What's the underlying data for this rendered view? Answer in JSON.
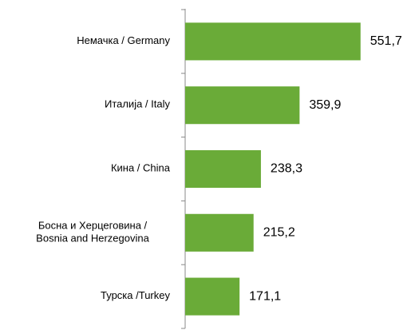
{
  "chart_data": {
    "type": "hbar",
    "categories": [
      "Немачка / Germany",
      "Италија / Italy",
      "Кина / China",
      "Босна и Херцеговина /\nBosnia and Herzegovina",
      "Турска /Turkey"
    ],
    "values": [
      551.7,
      359.9,
      238.3,
      215.2,
      171.1
    ],
    "value_labels": [
      "551,7",
      "359,9",
      "238,3",
      "215,2",
      "171,1"
    ],
    "color": "#6aab38",
    "xlim": [
      0,
      600
    ]
  }
}
